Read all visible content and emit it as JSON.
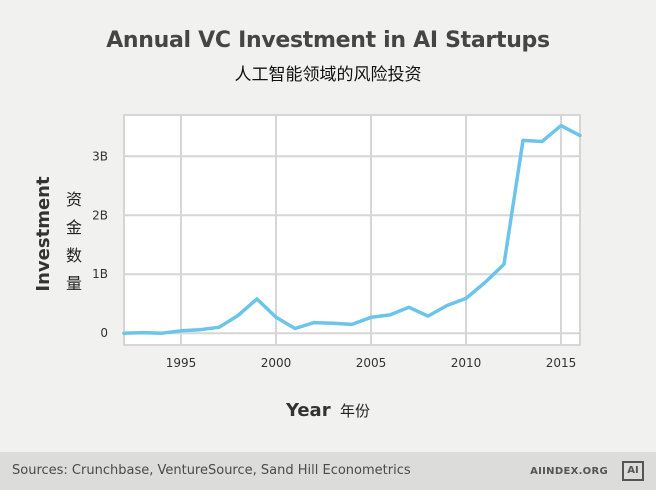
{
  "header": {
    "title": "Annual VC Investment in AI Startups",
    "subtitle": "人工智能领域的风险投资"
  },
  "axes": {
    "ylabel_en": "Investment",
    "ylabel_cn": "资金数量",
    "xlabel_en": "Year",
    "xlabel_cn": "年份"
  },
  "footer": {
    "sources": "Sources: Crunchbase, VentureSource, Sand Hill Econometrics",
    "brand": "AIINDEX.ORG",
    "logo": "AI"
  },
  "chart_data": {
    "type": "line",
    "title": "Annual VC Investment in AI Startups",
    "subtitle": "人工智能领域的风险投资",
    "xlabel": "Year 年份",
    "ylabel": "Investment 资金数量",
    "x": [
      1992,
      1993,
      1994,
      1995,
      1996,
      1997,
      1998,
      1999,
      2000,
      2001,
      2002,
      2003,
      2004,
      2005,
      2006,
      2007,
      2008,
      2009,
      2010,
      2011,
      2012,
      2013,
      2014,
      2015,
      2016
    ],
    "series": [
      {
        "color": "#6cc4ea",
        "values": [
          0.0,
          0.01,
          0.0,
          0.04,
          0.06,
          0.1,
          0.3,
          0.58,
          0.27,
          0.08,
          0.18,
          0.17,
          0.15,
          0.27,
          0.31,
          0.44,
          0.29,
          0.47,
          0.59,
          0.86,
          1.17,
          3.27,
          3.25,
          3.52,
          3.35
        ]
      }
    ],
    "xlim": [
      1992,
      2016
    ],
    "ylim": [
      -0.2,
      3.7
    ],
    "xticks": [
      1995,
      2000,
      2005,
      2010,
      2015
    ],
    "xtick_labels": [
      "1995",
      "2000",
      "2005",
      "2010",
      "2015"
    ],
    "yticks": [
      0,
      1,
      2,
      3
    ],
    "ytick_labels": [
      "0",
      "1B",
      "2B",
      "3B"
    ],
    "grid": true,
    "legend": "none"
  }
}
